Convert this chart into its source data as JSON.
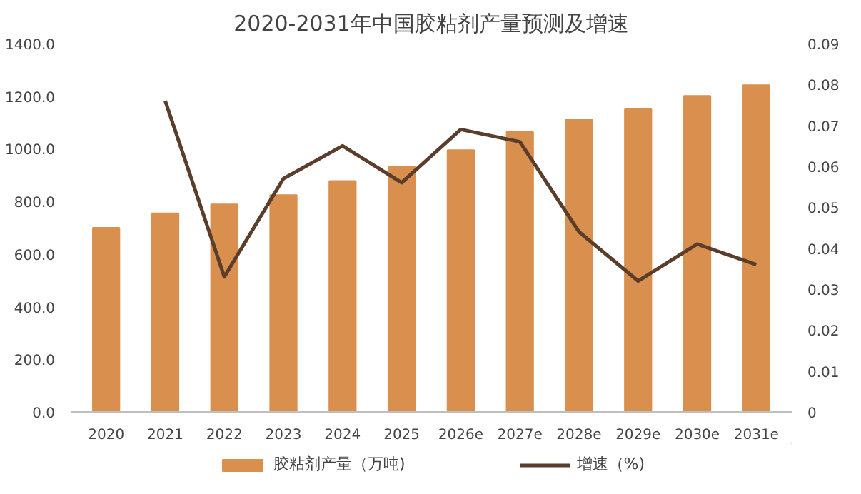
{
  "chart_data": {
    "type": "bar",
    "title": "2020-2031年中国胶粘剂产量预测及增速",
    "categories": [
      "2020",
      "2021",
      "2022",
      "2023",
      "2024",
      "2025",
      "2026e",
      "2027e",
      "2028e",
      "2029e",
      "2030e",
      "2031e"
    ],
    "series": [
      {
        "name": "胶粘剂产量（万吨)",
        "type": "bar",
        "color": "#d98f4e",
        "values": [
          700,
          755,
          789,
          824,
          878,
          933,
          995,
          1064,
          1112,
          1153,
          1201,
          1242
        ]
      },
      {
        "name": "增速（%)",
        "type": "line",
        "axis": "y2",
        "color": "#5a3e2b",
        "values": [
          null,
          0.076,
          0.033,
          0.057,
          0.065,
          0.056,
          0.069,
          0.066,
          0.044,
          0.032,
          0.041,
          0.036
        ]
      }
    ],
    "ylim": [
      0,
      1400
    ],
    "yticks": [
      {
        "value": 0,
        "label": "0.0"
      },
      {
        "value": 200,
        "label": "200.0"
      },
      {
        "value": 400,
        "label": "400.0"
      },
      {
        "value": 600,
        "label": "600.0"
      },
      {
        "value": 800,
        "label": "800.0"
      },
      {
        "value": 1000,
        "label": "1000.0"
      },
      {
        "value": 1200,
        "label": "1200.0"
      },
      {
        "value": 1400,
        "label": "1400.0"
      }
    ],
    "y2lim": [
      0,
      0.09
    ],
    "y2ticks": [
      0,
      0.01,
      0.02,
      0.03,
      0.04,
      0.05,
      0.06,
      0.07,
      0.08,
      0.09
    ],
    "grid": false,
    "legend": "bottom",
    "line_style": "solid",
    "marker": "none"
  }
}
